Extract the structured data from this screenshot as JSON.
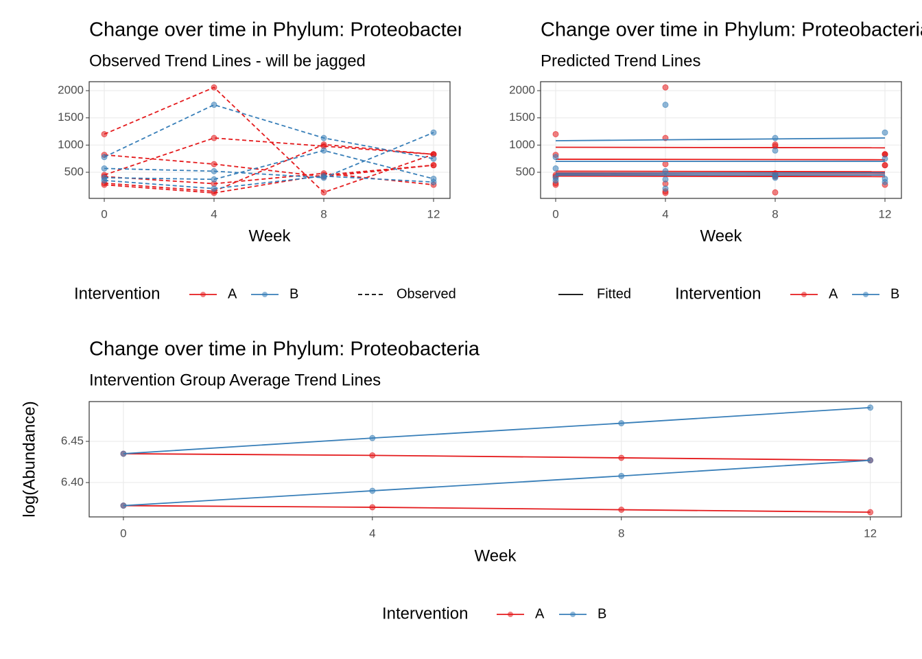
{
  "chart_data": [
    {
      "type": "line",
      "dashed": true,
      "title": "Change over time in Phylum: Proteobacteria",
      "subtitle": "Observed Trend Lines - will be jagged",
      "xlabel": "Week",
      "legend_title": "Intervention",
      "linetype_label": "Observed",
      "x": [
        0,
        4,
        8,
        12
      ],
      "xlim": [
        -0.55,
        12.6
      ],
      "xticks": [
        0,
        4,
        8,
        12
      ],
      "ylim": [
        20,
        2165
      ],
      "yticks": [
        500,
        1000,
        1500,
        2000
      ],
      "grid": true,
      "series": [
        {
          "name": "A",
          "color": "#E41A1C",
          "values": [
            [
              1200,
              2060,
              130,
              830
            ],
            [
              820,
              650,
              420,
              630
            ],
            [
              450,
              1130,
              980,
              830
            ],
            [
              420,
              290,
              480,
              270
            ],
            [
              300,
              150,
              1010,
              830
            ],
            [
              270,
              120,
              450,
              630
            ]
          ]
        },
        {
          "name": "B",
          "color": "#377EB8",
          "values": [
            [
              780,
              1740,
              1130,
              750
            ],
            [
              570,
              520,
              400,
              1230
            ],
            [
              400,
              370,
              900,
              380
            ],
            [
              350,
              200,
              430,
              320
            ]
          ]
        }
      ]
    },
    {
      "type": "scatter",
      "title": "Change over time in Phylum: Proteobacteria",
      "subtitle": "Predicted Trend Lines",
      "xlabel": "Week",
      "legend_title": "Intervention",
      "linetype_label": "Fitted",
      "x": [
        0,
        4,
        8,
        12
      ],
      "fitted_x": [
        0,
        12
      ],
      "xlim": [
        -0.55,
        12.6
      ],
      "xticks": [
        0,
        4,
        8,
        12
      ],
      "ylim": [
        20,
        2165
      ],
      "yticks": [
        500,
        1000,
        1500,
        2000
      ],
      "grid": true,
      "series": [
        {
          "name": "A",
          "color": "#E41A1C",
          "values": [
            [
              1200,
              2060,
              130,
              830
            ],
            [
              820,
              650,
              420,
              630
            ],
            [
              450,
              1130,
              980,
              830
            ],
            [
              420,
              290,
              480,
              270
            ],
            [
              300,
              150,
              1010,
              830
            ],
            [
              270,
              120,
              450,
              630
            ]
          ],
          "fitted": [
            [
              960,
              950
            ],
            [
              740,
              730
            ],
            [
              520,
              510
            ],
            [
              490,
              480
            ],
            [
              460,
              450
            ],
            [
              430,
              420
            ]
          ]
        },
        {
          "name": "B",
          "color": "#377EB8",
          "values": [
            [
              780,
              1740,
              1130,
              750
            ],
            [
              570,
              520,
              400,
              1230
            ],
            [
              400,
              370,
              900,
              380
            ],
            [
              350,
              200,
              430,
              320
            ]
          ],
          "fitted": [
            [
              1080,
              1130
            ],
            [
              700,
              700
            ],
            [
              480,
              490
            ],
            [
              450,
              450
            ]
          ]
        }
      ]
    },
    {
      "type": "line",
      "title": "Change over time in Phylum: Proteobacteria",
      "subtitle": "Intervention Group Average Trend Lines",
      "xlabel": "Week",
      "ylabel": "log(Abundance)",
      "legend_title": "Intervention",
      "x": [
        0,
        4,
        8,
        12
      ],
      "xlim": [
        -0.55,
        12.5
      ],
      "xticks": [
        0,
        4,
        8,
        12
      ],
      "ylim": [
        6.3583,
        6.4983
      ],
      "yticks": [
        {
          "value": 6.4,
          "label": "6.40"
        },
        {
          "value": 6.45,
          "label": "6.45"
        }
      ],
      "grid": true,
      "series": [
        {
          "name": "A",
          "color": "#E41A1C",
          "values": [
            6.435,
            6.433,
            6.43,
            6.427
          ]
        },
        {
          "name": "B",
          "color": "#377EB8",
          "values": [
            6.435,
            6.454,
            6.472,
            6.491
          ]
        },
        {
          "name": "A",
          "color": "#E41A1C",
          "values": [
            6.372,
            6.37,
            6.367,
            6.364
          ]
        },
        {
          "name": "B",
          "color": "#377EB8",
          "values": [
            6.372,
            6.39,
            6.408,
            6.427
          ]
        }
      ]
    }
  ]
}
